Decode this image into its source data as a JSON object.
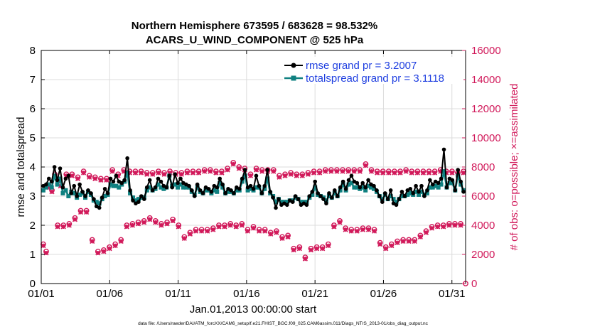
{
  "chart_data": {
    "type": "line",
    "title_line1": "Northern Hemisphere 673595 / 683628 = 98.532%",
    "title_line2": "ACARS_U_WIND_COMPONENT @ 525 hPa",
    "xlabel": "Jan.01,2013 00:00:00 start",
    "ylabel_left": "rmse and totalspread",
    "ylabel_right": "# of obs: o=possible; ×=assimilated",
    "xlim": [
      0,
      31
    ],
    "ylim_left": [
      0,
      8
    ],
    "ylim_right": [
      0,
      16000
    ],
    "x_ticks": [
      0,
      5,
      10,
      15,
      20,
      25,
      30
    ],
    "x_tick_labels": [
      "01/01",
      "01/06",
      "01/11",
      "01/16",
      "01/21",
      "01/26",
      "01/31"
    ],
    "y_left_ticks": [
      "0",
      "1",
      "2",
      "3",
      "4",
      "5",
      "6",
      "7",
      "8"
    ],
    "y_right_ticks": [
      "0",
      "2000",
      "4000",
      "6000",
      "8000",
      "10000",
      "12000",
      "14000",
      "16000"
    ],
    "grid": true,
    "legend": [
      "rmse grand pr = 3.2007",
      "totalspread grand pr = 3.1118"
    ],
    "colors": {
      "rmse": "#000000",
      "totalspread": "#0f8080",
      "obs": "#d1195a",
      "legend_text": "#1f3fe0"
    },
    "footnote": "data file: /Users/raeder/DAI/ATM_forcXX/CAM6_setup/f.e21.FHIST_BGC.f09_025.CAM6assim.011/Diags_NTrS_2013-01/obs_diag_output.nc",
    "series": [
      {
        "name": "rmse",
        "values": [
          3.35,
          3.4,
          3.6,
          3.5,
          4.0,
          3.55,
          3.95,
          3.3,
          3.6,
          3.7,
          3.1,
          3.35,
          3.0,
          3.4,
          3.15,
          3.0,
          3.2,
          3.1,
          2.9,
          2.65,
          2.6,
          2.95,
          3.25,
          3.1,
          3.6,
          3.5,
          3.7,
          3.5,
          3.45,
          3.55,
          4.3,
          3.2,
          2.85,
          2.75,
          2.8,
          3.0,
          2.9,
          3.3,
          3.55,
          3.2,
          3.3,
          3.6,
          3.5,
          3.35,
          3.3,
          3.7,
          3.3,
          3.75,
          3.45,
          3.6,
          3.45,
          3.4,
          3.35,
          3.2,
          3.0,
          3.4,
          3.2,
          3.1,
          3.3,
          3.25,
          3.15,
          3.35,
          3.3,
          3.6,
          3.4,
          3.1,
          3.25,
          3.2,
          3.1,
          3.3,
          3.25,
          3.6,
          3.9,
          3.3,
          3.35,
          3.25,
          3.7,
          3.35,
          3.1,
          3.35,
          3.9,
          3.15,
          2.95,
          2.6,
          2.9,
          2.7,
          2.75,
          2.7,
          2.85,
          2.8,
          3.0,
          2.9,
          2.7,
          2.75,
          2.7,
          3.0,
          3.15,
          3.5,
          3.1,
          3.0,
          2.9,
          2.75,
          3.1,
          2.95,
          3.2,
          3.0,
          3.3,
          3.5,
          3.25,
          3.55,
          3.7,
          3.5,
          3.45,
          3.3,
          3.45,
          3.3,
          3.55,
          3.4,
          3.35,
          3.2,
          3.0,
          2.8,
          3.1,
          2.9,
          3.2,
          2.75,
          2.7,
          2.9,
          3.15,
          3.0,
          3.2,
          3.25,
          3.1,
          3.35,
          3.15,
          3.35,
          3.0,
          3.2,
          3.55,
          3.4,
          3.5,
          3.45,
          3.6,
          4.6,
          3.3,
          3.6,
          3.55,
          3.2,
          3.9,
          3.5,
          3.15
        ]
      },
      {
        "name": "totalspread",
        "values": [
          3.2,
          3.3,
          3.4,
          3.3,
          3.7,
          3.4,
          3.6,
          3.1,
          3.2,
          3.0,
          3.15,
          3.1,
          2.95,
          3.05,
          3.1,
          2.95,
          3.15,
          3.05,
          2.85,
          2.8,
          2.75,
          2.9,
          3.0,
          3.05,
          3.4,
          3.35,
          3.35,
          3.3,
          3.4,
          3.5,
          3.8,
          3.1,
          2.95,
          2.85,
          2.9,
          2.95,
          2.95,
          3.2,
          3.3,
          3.2,
          3.25,
          3.4,
          3.3,
          3.25,
          3.3,
          3.7,
          3.35,
          3.4,
          3.3,
          3.4,
          3.3,
          3.3,
          3.3,
          3.15,
          3.05,
          3.3,
          3.15,
          3.1,
          3.2,
          3.2,
          3.1,
          3.2,
          3.15,
          3.45,
          3.3,
          3.1,
          3.15,
          3.15,
          3.1,
          3.2,
          3.2,
          3.5,
          3.7,
          3.2,
          3.25,
          3.2,
          3.3,
          3.3,
          3.1,
          3.25,
          3.6,
          3.1,
          3.0,
          2.8,
          2.9,
          2.8,
          2.8,
          2.8,
          2.85,
          2.85,
          2.95,
          2.9,
          2.8,
          2.8,
          2.8,
          2.95,
          3.05,
          3.3,
          3.05,
          3.0,
          2.95,
          2.85,
          3.0,
          2.95,
          3.1,
          3.0,
          3.2,
          3.4,
          3.2,
          3.4,
          3.45,
          3.3,
          3.3,
          3.25,
          3.3,
          3.2,
          3.35,
          3.3,
          3.25,
          3.15,
          3.0,
          2.9,
          3.05,
          2.9,
          3.0,
          2.9,
          2.8,
          2.9,
          3.0,
          3.0,
          3.05,
          3.1,
          3.05,
          3.15,
          3.05,
          3.15,
          3.05,
          3.1,
          3.3,
          3.3,
          3.35,
          3.3,
          3.4,
          3.85,
          3.3,
          3.45,
          3.45,
          3.2,
          3.7,
          3.4,
          3.2
        ]
      },
      {
        "name": "obs_possible",
        "axis": "right",
        "values": [
          2700,
          2200,
          6700,
          6400,
          7500,
          4000,
          6800,
          4000,
          7500,
          4100,
          7500,
          4500,
          7300,
          5000,
          7700,
          5000,
          7400,
          3000,
          7300,
          2200,
          7200,
          2300,
          7200,
          2500,
          7800,
          2700,
          7500,
          3000,
          7800,
          4000,
          7700,
          4100,
          7700,
          4200,
          7700,
          4300,
          7600,
          4500,
          7600,
          4300,
          7700,
          4100,
          7600,
          4200,
          7700,
          4400,
          7600,
          4000,
          7600,
          3200,
          7700,
          3500,
          7700,
          3700,
          7700,
          3700,
          7800,
          3700,
          7800,
          3800,
          7700,
          4000,
          7700,
          4000,
          7900,
          4100,
          8300,
          4000,
          8000,
          4100,
          7900,
          3700,
          7500,
          3900,
          7900,
          3700,
          7800,
          3700,
          7800,
          3500,
          7800,
          3600,
          7400,
          3200,
          7500,
          3300,
          7600,
          2400,
          7500,
          2500,
          7500,
          1800,
          7600,
          2400,
          7700,
          2500,
          7700,
          2500,
          7800,
          2700,
          7800,
          4000,
          7800,
          4300,
          7800,
          3800,
          7800,
          3700,
          7800,
          3700,
          7800,
          3800,
          8200,
          3800,
          7800,
          3700,
          7700,
          2800,
          7700,
          2500,
          7700,
          2700,
          7700,
          2900,
          7700,
          3000,
          7800,
          3000,
          7700,
          3000,
          7700,
          3300,
          7700,
          3600,
          7700,
          3900,
          7700,
          4000,
          7800,
          4000,
          7700,
          4100,
          7700,
          4100,
          7600,
          4100,
          7700
        ]
      },
      {
        "name": "obs_assimilated",
        "axis": "right",
        "values": [
          2600,
          2100,
          6600,
          6300,
          7400,
          3900,
          6700,
          3900,
          7400,
          4000,
          7400,
          4400,
          7200,
          4900,
          7600,
          4900,
          7300,
          2900,
          7200,
          2100,
          7100,
          2200,
          7100,
          2400,
          7700,
          2600,
          7400,
          2900,
          7700,
          3900,
          7600,
          4000,
          7600,
          4100,
          7600,
          4200,
          7500,
          4400,
          7500,
          4200,
          7600,
          4000,
          7500,
          4100,
          7600,
          4300,
          7500,
          3900,
          7500,
          3100,
          7600,
          3400,
          7600,
          3600,
          7600,
          3600,
          7700,
          3600,
          7700,
          3700,
          7600,
          3900,
          7600,
          3900,
          7800,
          4000,
          8200,
          3900,
          7900,
          4000,
          7800,
          3600,
          7400,
          3800,
          7800,
          3600,
          7700,
          3600,
          7700,
          3400,
          7700,
          3500,
          7300,
          3100,
          7400,
          3200,
          7500,
          2300,
          7400,
          2400,
          7400,
          1700,
          7500,
          2300,
          7600,
          2400,
          7600,
          2400,
          7700,
          2600,
          7700,
          3900,
          7700,
          4200,
          7700,
          3700,
          7700,
          3600,
          7700,
          3600,
          7700,
          3700,
          8100,
          3700,
          7700,
          3600,
          7600,
          2700,
          7600,
          2400,
          7600,
          2600,
          7600,
          2800,
          7600,
          2900,
          7700,
          2900,
          7600,
          2900,
          7600,
          3200,
          7600,
          3500,
          7600,
          3800,
          7600,
          3900,
          7700,
          3900,
          7600,
          4000,
          7600,
          4000,
          7500,
          4000,
          7600
        ]
      }
    ]
  }
}
